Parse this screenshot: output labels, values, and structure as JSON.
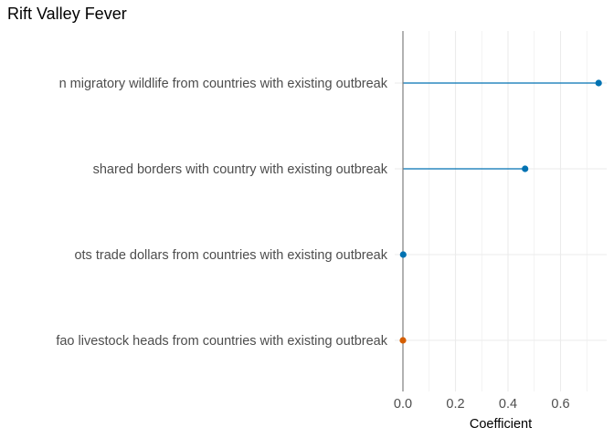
{
  "chart_data": {
    "type": "lollipop",
    "title": "Rift Valley Fever",
    "xlabel": "Coefficient",
    "ylabel": "",
    "xlim": [
      0,
      0.78
    ],
    "xticks": [
      0.0,
      0.2,
      0.4,
      0.6
    ],
    "xtick_labels": [
      "0.0",
      "0.2",
      "0.4",
      "0.6"
    ],
    "categories": [
      "n migratory wildlife from countries with existing outbreak",
      "shared borders with country with existing outbreak",
      "ots trade dollars from countries with existing outbreak",
      "fao livestock heads from countries with existing outbreak"
    ],
    "values": [
      0.745,
      0.465,
      0.001,
      0.0
    ],
    "point_colors": [
      "#0072B2",
      "#0072B2",
      "#0072B2",
      "#D55E00"
    ],
    "grid": true,
    "colors": {
      "positive": "#0072B2",
      "zero": "#D55E00",
      "grid": "#ebebeb",
      "zero_line": "#7f7f7f"
    }
  }
}
